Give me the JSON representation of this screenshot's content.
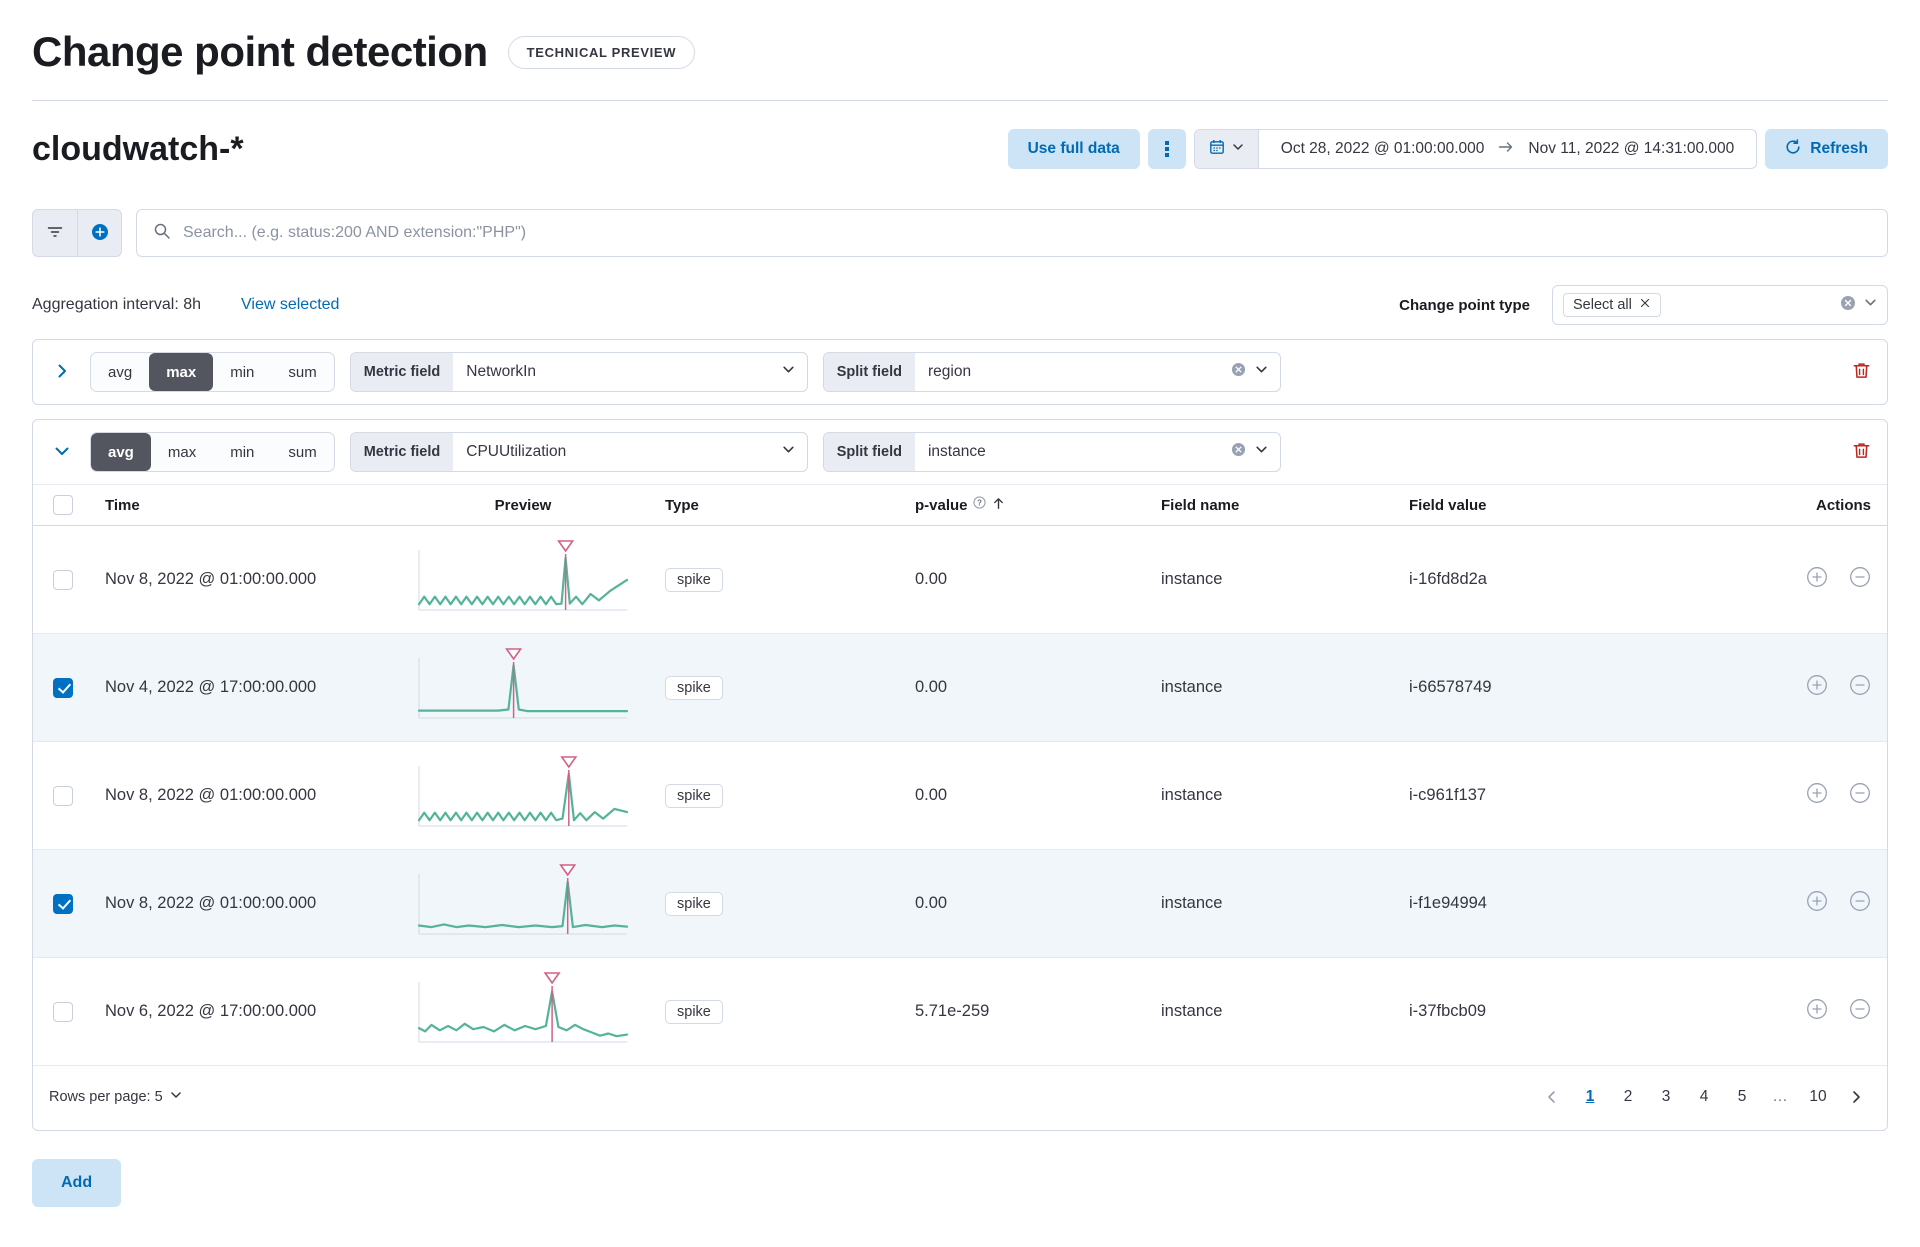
{
  "colors": {
    "accent_blue": "#006BB4",
    "button_bg_blue": "#CCE4F5",
    "dark_fill": "#53565F",
    "danger_red": "#BD271E",
    "border": "#D3DAE6",
    "selected_row_bg": "#F1F6FB",
    "spark_line_green": "#54B399",
    "spark_marker_pink": "#D36086"
  },
  "page": {
    "title": "Change point detection",
    "tech_badge": "TECHNICAL PREVIEW"
  },
  "toolbar": {
    "index_pattern": "cloudwatch-*",
    "use_full_data": "Use full data",
    "date_start": "Oct 28, 2022 @ 01:00:00.000",
    "date_end": "Nov 11, 2022 @ 14:31:00.000",
    "refresh": "Refresh"
  },
  "search": {
    "placeholder": "Search... (e.g. status:200 AND extension:\"PHP\")"
  },
  "controls": {
    "aggregation_interval": "Aggregation interval: 8h",
    "view_selected": "View selected",
    "change_point_type_label": "Change point type",
    "selected_type": "Select all"
  },
  "panels": [
    {
      "agg_options": [
        "avg",
        "max",
        "min",
        "sum"
      ],
      "selected_agg": "max",
      "metric_label": "Metric field",
      "metric_value": "NetworkIn",
      "split_label": "Split field",
      "split_value": "region",
      "expanded": false
    },
    {
      "agg_options": [
        "avg",
        "max",
        "min",
        "sum"
      ],
      "selected_agg": "avg",
      "metric_label": "Metric field",
      "metric_value": "CPUUtilization",
      "split_label": "Split field",
      "split_value": "instance",
      "expanded": true
    }
  ],
  "table": {
    "headers": {
      "time": "Time",
      "preview": "Preview",
      "type": "Type",
      "p_value": "p-value",
      "field_name": "Field name",
      "field_value": "Field value",
      "actions": "Actions"
    },
    "rows": [
      {
        "checked": false,
        "time": "Nov 8, 2022 @ 01:00:00.000",
        "type": "spike",
        "p_value": "0.00",
        "field_name": "instance",
        "field_value": "i-16fd8d2a",
        "spark": {
          "marker_x": 0.705,
          "points": [
            [
              0,
              0.93
            ],
            [
              0.025,
              0.79
            ],
            [
              0.051,
              0.93
            ],
            [
              0.076,
              0.79
            ],
            [
              0.102,
              0.93
            ],
            [
              0.127,
              0.79
            ],
            [
              0.152,
              0.93
            ],
            [
              0.178,
              0.79
            ],
            [
              0.203,
              0.93
            ],
            [
              0.228,
              0.79
            ],
            [
              0.254,
              0.93
            ],
            [
              0.279,
              0.79
            ],
            [
              0.305,
              0.93
            ],
            [
              0.33,
              0.79
            ],
            [
              0.356,
              0.93
            ],
            [
              0.381,
              0.79
            ],
            [
              0.406,
              0.93
            ],
            [
              0.432,
              0.79
            ],
            [
              0.457,
              0.93
            ],
            [
              0.483,
              0.79
            ],
            [
              0.508,
              0.93
            ],
            [
              0.533,
              0.79
            ],
            [
              0.559,
              0.93
            ],
            [
              0.584,
              0.79
            ],
            [
              0.61,
              0.93
            ],
            [
              0.635,
              0.79
            ],
            [
              0.66,
              0.93
            ],
            [
              0.685,
              0.92
            ],
            [
              0.705,
              0.07
            ],
            [
              0.725,
              0.92
            ],
            [
              0.755,
              0.79
            ],
            [
              0.785,
              0.93
            ],
            [
              0.825,
              0.74
            ],
            [
              0.865,
              0.86
            ],
            [
              0.92,
              0.68
            ],
            [
              1,
              0.48
            ]
          ]
        }
      },
      {
        "checked": true,
        "time": "Nov 4, 2022 @ 17:00:00.000",
        "type": "spike",
        "p_value": "0.00",
        "field_name": "instance",
        "field_value": "i-66578749",
        "spark": {
          "marker_x": 0.455,
          "points": [
            [
              0,
              0.9
            ],
            [
              0.38,
              0.9
            ],
            [
              0.43,
              0.88
            ],
            [
              0.455,
              0.06
            ],
            [
              0.48,
              0.88
            ],
            [
              0.52,
              0.91
            ],
            [
              1,
              0.91
            ]
          ]
        }
      },
      {
        "checked": false,
        "time": "Nov 8, 2022 @ 01:00:00.000",
        "type": "spike",
        "p_value": "0.00",
        "field_name": "instance",
        "field_value": "i-c961f137",
        "spark": {
          "marker_x": 0.72,
          "points": [
            [
              0,
              0.93
            ],
            [
              0.025,
              0.79
            ],
            [
              0.051,
              0.93
            ],
            [
              0.076,
              0.79
            ],
            [
              0.102,
              0.93
            ],
            [
              0.127,
              0.79
            ],
            [
              0.152,
              0.93
            ],
            [
              0.178,
              0.79
            ],
            [
              0.203,
              0.93
            ],
            [
              0.228,
              0.79
            ],
            [
              0.254,
              0.93
            ],
            [
              0.279,
              0.79
            ],
            [
              0.305,
              0.93
            ],
            [
              0.33,
              0.79
            ],
            [
              0.356,
              0.93
            ],
            [
              0.381,
              0.79
            ],
            [
              0.406,
              0.93
            ],
            [
              0.432,
              0.79
            ],
            [
              0.457,
              0.93
            ],
            [
              0.483,
              0.79
            ],
            [
              0.508,
              0.93
            ],
            [
              0.533,
              0.79
            ],
            [
              0.559,
              0.93
            ],
            [
              0.584,
              0.79
            ],
            [
              0.61,
              0.93
            ],
            [
              0.635,
              0.79
            ],
            [
              0.66,
              0.93
            ],
            [
              0.69,
              0.9
            ],
            [
              0.72,
              0.07
            ],
            [
              0.745,
              0.93
            ],
            [
              0.775,
              0.8
            ],
            [
              0.805,
              0.93
            ],
            [
              0.845,
              0.78
            ],
            [
              0.885,
              0.9
            ],
            [
              0.94,
              0.72
            ],
            [
              1,
              0.78
            ]
          ]
        }
      },
      {
        "checked": true,
        "time": "Nov 8, 2022 @ 01:00:00.000",
        "type": "spike",
        "p_value": "0.00",
        "field_name": "instance",
        "field_value": "i-f1e94994",
        "spark": {
          "marker_x": 0.715,
          "points": [
            [
              0,
              0.88
            ],
            [
              0.06,
              0.91
            ],
            [
              0.12,
              0.86
            ],
            [
              0.18,
              0.91
            ],
            [
              0.24,
              0.88
            ],
            [
              0.32,
              0.91
            ],
            [
              0.4,
              0.87
            ],
            [
              0.48,
              0.91
            ],
            [
              0.56,
              0.88
            ],
            [
              0.64,
              0.91
            ],
            [
              0.69,
              0.89
            ],
            [
              0.715,
              0.07
            ],
            [
              0.74,
              0.91
            ],
            [
              0.8,
              0.87
            ],
            [
              0.88,
              0.91
            ],
            [
              0.94,
              0.88
            ],
            [
              1,
              0.9
            ]
          ]
        }
      },
      {
        "checked": false,
        "time": "Nov 6, 2022 @ 17:00:00.000",
        "type": "spike",
        "p_value": "5.71e-259",
        "field_name": "instance",
        "field_value": "i-37fbcb09",
        "spark": {
          "marker_x": 0.64,
          "points": [
            [
              0,
              0.78
            ],
            [
              0.03,
              0.84
            ],
            [
              0.06,
              0.72
            ],
            [
              0.1,
              0.82
            ],
            [
              0.14,
              0.74
            ],
            [
              0.18,
              0.82
            ],
            [
              0.22,
              0.7
            ],
            [
              0.26,
              0.8
            ],
            [
              0.31,
              0.76
            ],
            [
              0.36,
              0.84
            ],
            [
              0.41,
              0.72
            ],
            [
              0.46,
              0.82
            ],
            [
              0.51,
              0.74
            ],
            [
              0.56,
              0.8
            ],
            [
              0.61,
              0.74
            ],
            [
              0.64,
              0.1
            ],
            [
              0.67,
              0.76
            ],
            [
              0.71,
              0.82
            ],
            [
              0.75,
              0.72
            ],
            [
              0.79,
              0.8
            ],
            [
              0.83,
              0.86
            ],
            [
              0.87,
              0.92
            ],
            [
              0.91,
              0.88
            ],
            [
              0.95,
              0.93
            ],
            [
              1,
              0.9
            ]
          ]
        }
      }
    ]
  },
  "pagination": {
    "rows_per_page": "Rows per page: 5",
    "pages": [
      "1",
      "2",
      "3",
      "4",
      "5",
      "…",
      "10"
    ],
    "active": "1"
  },
  "footer": {
    "add": "Add"
  }
}
